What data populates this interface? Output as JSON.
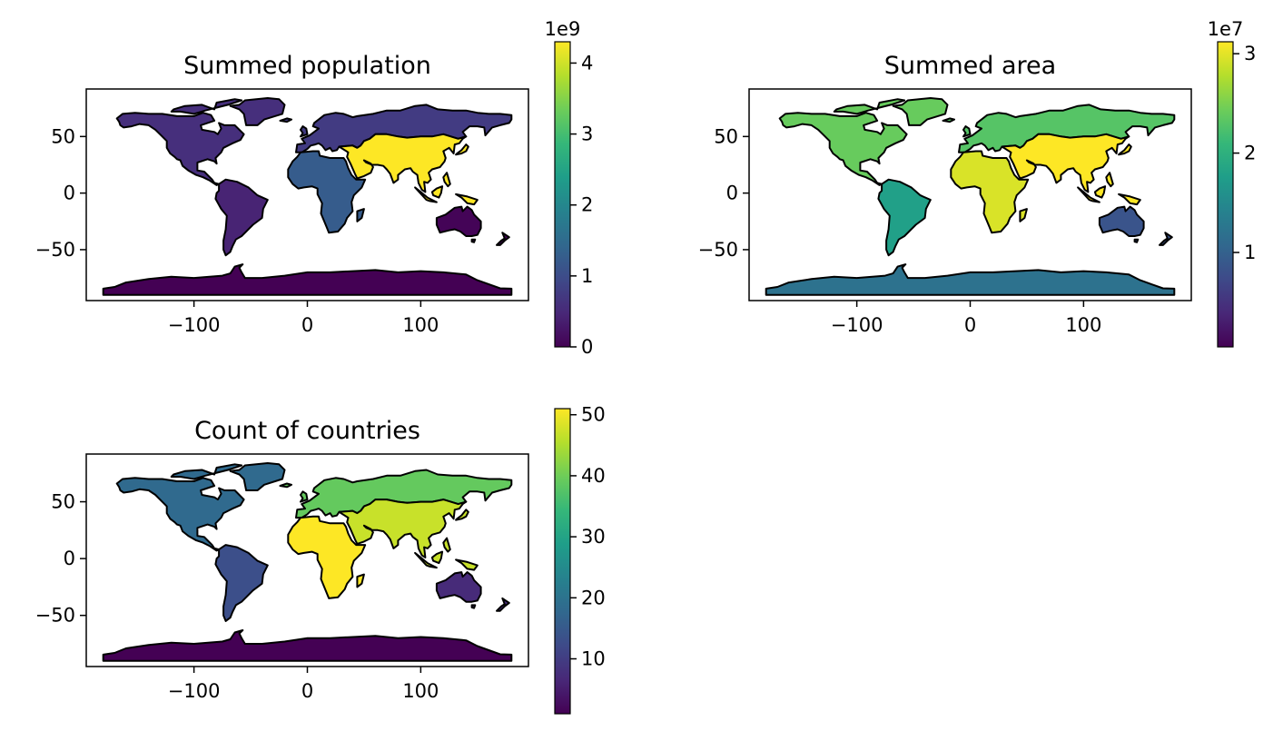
{
  "chart_data": [
    {
      "type": "choropleth",
      "title": "Summed population",
      "xlim": [
        -195,
        195
      ],
      "ylim": [
        -95,
        92
      ],
      "xticks": [
        -100,
        0,
        100
      ],
      "yticks": [
        50,
        0,
        -50
      ],
      "xtick_labels": [
        "−100",
        "0",
        "100"
      ],
      "ytick_labels": [
        "50",
        "0",
        "−50"
      ],
      "colorbar": {
        "cmap": "viridis",
        "vmin": 0,
        "vmax": 4.3,
        "ticks": [
          0,
          1,
          2,
          3,
          4
        ],
        "tick_labels": [
          "0",
          "1",
          "2",
          "3",
          "4"
        ],
        "offset_text": "1e9"
      },
      "regions": [
        {
          "name": "North America",
          "value": 0.58
        },
        {
          "name": "South America",
          "value": 0.43
        },
        {
          "name": "Europe",
          "value": 0.75
        },
        {
          "name": "Africa",
          "value": 1.25
        },
        {
          "name": "Asia",
          "value": 4.3
        },
        {
          "name": "Oceania",
          "value": 0.04
        },
        {
          "name": "Antarctica",
          "value": 0.0
        }
      ]
    },
    {
      "type": "choropleth",
      "title": "Summed area",
      "xlim": [
        -195,
        195
      ],
      "ylim": [
        -95,
        92
      ],
      "xticks": [
        -100,
        0,
        100
      ],
      "yticks": [
        50,
        0,
        -50
      ],
      "xtick_labels": [
        "−100",
        "0",
        "100"
      ],
      "ytick_labels": [
        "50",
        "0",
        "−50"
      ],
      "colorbar": {
        "cmap": "viridis",
        "vmin": 0.05,
        "vmax": 3.12,
        "ticks": [
          1,
          2,
          3
        ],
        "tick_labels": [
          "1",
          "2",
          "3"
        ],
        "offset_text": "1e7"
      },
      "regions": [
        {
          "name": "North America",
          "value": 2.4
        },
        {
          "name": "South America",
          "value": 1.78
        },
        {
          "name": "Europe",
          "value": 2.3
        },
        {
          "name": "Africa",
          "value": 2.95
        },
        {
          "name": "Asia",
          "value": 3.12
        },
        {
          "name": "Oceania",
          "value": 0.85
        },
        {
          "name": "Antarctica",
          "value": 1.2
        }
      ]
    },
    {
      "type": "choropleth",
      "title": "Count of countries",
      "xlim": [
        -195,
        195
      ],
      "ylim": [
        -95,
        92
      ],
      "xticks": [
        -100,
        0,
        100
      ],
      "yticks": [
        50,
        0,
        -50
      ],
      "xtick_labels": [
        "−100",
        "0",
        "100"
      ],
      "ytick_labels": [
        "50",
        "0",
        "−50"
      ],
      "colorbar": {
        "cmap": "viridis",
        "vmin": 1,
        "vmax": 51,
        "ticks": [
          10,
          20,
          30,
          40,
          50
        ],
        "tick_labels": [
          "10",
          "20",
          "30",
          "40",
          "50"
        ],
        "offset_text": ""
      },
      "regions": [
        {
          "name": "North America",
          "value": 18
        },
        {
          "name": "South America",
          "value": 13
        },
        {
          "name": "Europe",
          "value": 39
        },
        {
          "name": "Africa",
          "value": 51
        },
        {
          "name": "Asia",
          "value": 47
        },
        {
          "name": "Oceania",
          "value": 7
        },
        {
          "name": "Antarctica",
          "value": 1
        }
      ]
    }
  ]
}
